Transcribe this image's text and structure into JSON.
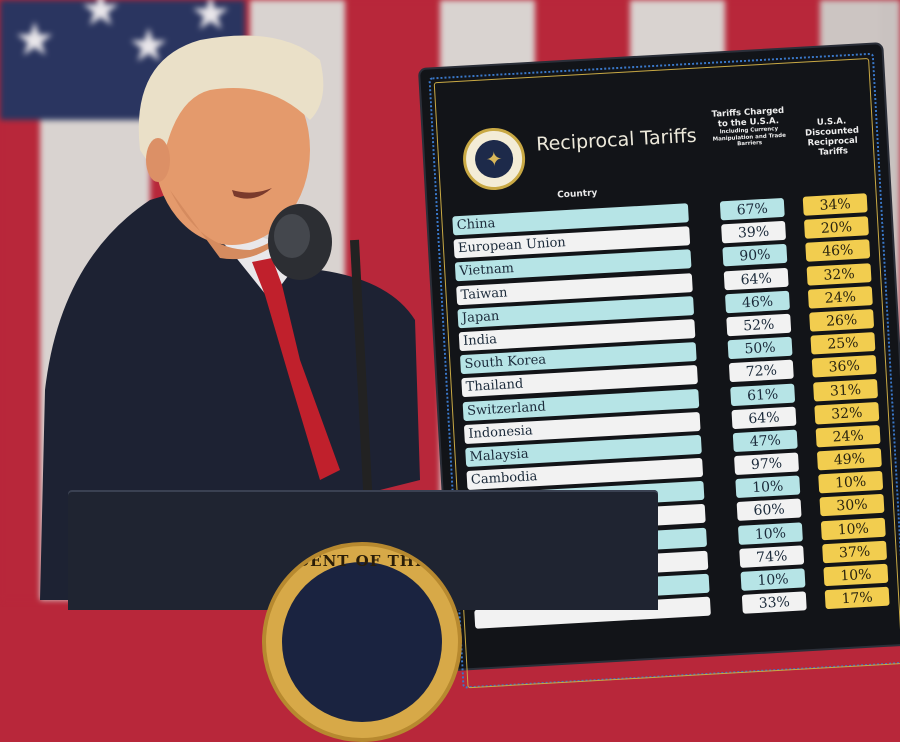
{
  "scene": {
    "background": "american-flag",
    "colors": {
      "flag_red": "#b8273a",
      "flag_white": "#dcd6d3",
      "flag_blue": "#2a3560",
      "board_bg": "#121418",
      "cyan_row": "#b6e4e6",
      "yellow_cell": "#f2cd4f",
      "podium": "#1f2431"
    }
  },
  "board": {
    "title": "Reciprocal Tariffs",
    "seal_icon": "presidential-seal-icon",
    "headers": {
      "country": "Country",
      "tariffs_charged": "Tariffs Charged to the U.S.A.",
      "tariffs_charged_note": "Including Currency Manipulation and Trade Barriers",
      "discounted": "U.S.A. Discounted Reciprocal Tariffs"
    },
    "rows": [
      {
        "country": "China",
        "charged": "67%",
        "discounted": "34%"
      },
      {
        "country": "European Union",
        "charged": "39%",
        "discounted": "20%"
      },
      {
        "country": "Vietnam",
        "charged": "90%",
        "discounted": "46%"
      },
      {
        "country": "Taiwan",
        "charged": "64%",
        "discounted": "32%"
      },
      {
        "country": "Japan",
        "charged": "46%",
        "discounted": "24%"
      },
      {
        "country": "India",
        "charged": "52%",
        "discounted": "26%"
      },
      {
        "country": "South Korea",
        "charged": "50%",
        "discounted": "25%"
      },
      {
        "country": "Thailand",
        "charged": "72%",
        "discounted": "36%"
      },
      {
        "country": "Switzerland",
        "charged": "61%",
        "discounted": "31%"
      },
      {
        "country": "Indonesia",
        "charged": "64%",
        "discounted": "32%"
      },
      {
        "country": "Malaysia",
        "charged": "47%",
        "discounted": "24%"
      },
      {
        "country": "Cambodia",
        "charged": "97%",
        "discounted": "49%"
      },
      {
        "country": "",
        "charged": "10%",
        "discounted": "10%"
      },
      {
        "country": "",
        "charged": "60%",
        "discounted": "30%"
      },
      {
        "country": "",
        "charged": "10%",
        "discounted": "10%"
      },
      {
        "country": "",
        "charged": "74%",
        "discounted": "37%"
      },
      {
        "country": "",
        "charged": "10%",
        "discounted": "10%"
      },
      {
        "country": "",
        "charged": "33%",
        "discounted": "17%"
      }
    ]
  },
  "podium": {
    "seal_text": "SIDENT OF THE U"
  }
}
